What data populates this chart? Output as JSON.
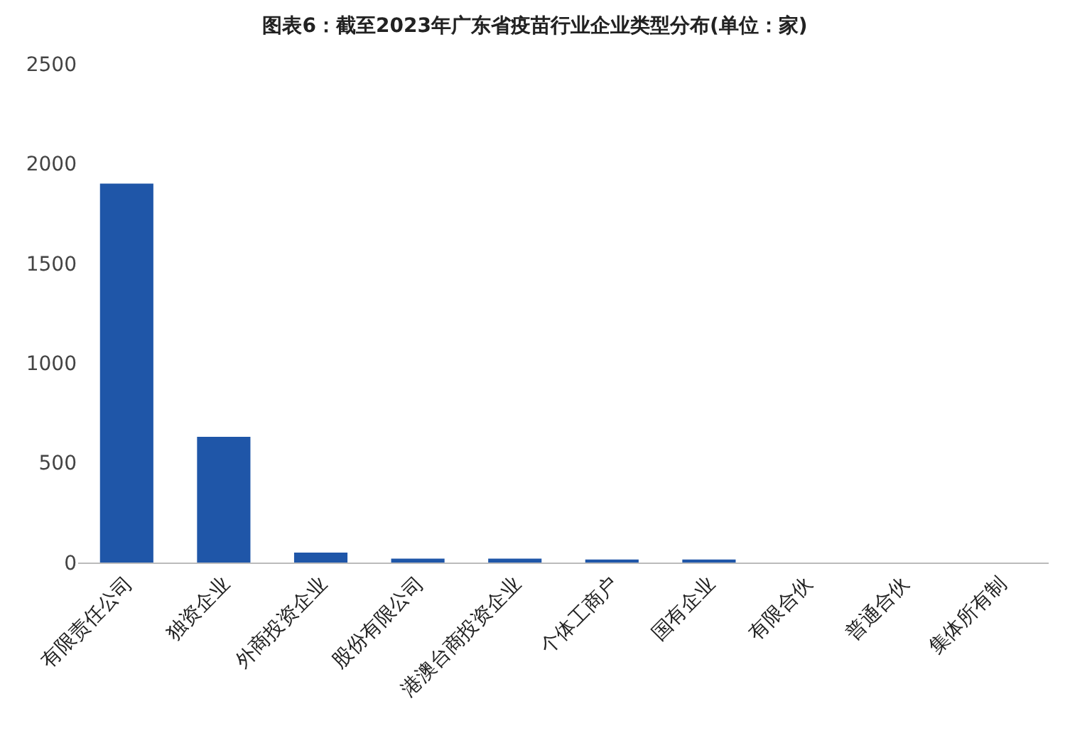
{
  "chart_data": {
    "type": "bar",
    "title": "图表6：截至2023年广东省疫苗行业企业类型分布(单位：家)",
    "categories": [
      "有限责任公司",
      "独资企业",
      "外商投资企业",
      "股份有限公司",
      "港澳台商投资企业",
      "个体工商户",
      "国有企业",
      "有限合伙",
      "普通合伙",
      "集体所有制"
    ],
    "values": [
      1900,
      630,
      50,
      20,
      20,
      15,
      15,
      0,
      0,
      0
    ],
    "color": "#1f56a8",
    "ylim": [
      0,
      2500
    ],
    "yticks": [
      0,
      500,
      1000,
      1500,
      2000,
      2500
    ],
    "grid": false
  }
}
